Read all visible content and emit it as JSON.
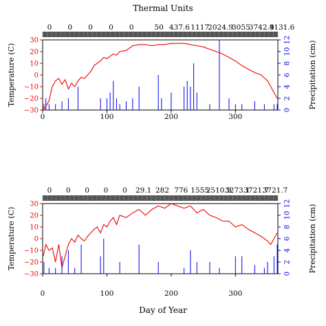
{
  "figure_title": "Thermal Units",
  "x_axis_label": "Day of Year",
  "colors": {
    "temperature": "#ee0000",
    "precipitation": "#0000ee",
    "band": "#555555"
  },
  "chart_data": [
    {
      "type": "line",
      "title": "",
      "xlabel": "",
      "ylabel": "Temperature (C)",
      "y2label": "Precipitation (cm)",
      "xlim": [
        0,
        366
      ],
      "ylim": [
        -30,
        30
      ],
      "y2lim": [
        0,
        12
      ],
      "x_ticks": [
        0,
        100,
        200,
        300
      ],
      "y_ticks": [
        -30,
        -20,
        -10,
        0,
        10,
        20,
        30
      ],
      "y2_ticks": [
        0,
        2,
        4,
        6,
        8,
        10,
        12
      ],
      "thermal_units": [
        "0",
        "0",
        "0",
        "0",
        "0",
        "50",
        "437.6",
        "1117",
        "2024.9",
        "3055",
        "3742.9",
        "4131.6"
      ],
      "series": [
        {
          "name": "Temperature",
          "kind": "line",
          "x": [
            1,
            5,
            10,
            15,
            20,
            25,
            30,
            35,
            40,
            45,
            50,
            55,
            60,
            65,
            70,
            75,
            80,
            85,
            90,
            95,
            100,
            105,
            110,
            115,
            120,
            130,
            140,
            150,
            160,
            170,
            180,
            190,
            200,
            210,
            220,
            230,
            240,
            250,
            260,
            270,
            280,
            290,
            300,
            310,
            320,
            330,
            340,
            350,
            355,
            360,
            365
          ],
          "y": [
            -30,
            -27,
            -22,
            -10,
            -5,
            -3,
            -8,
            -4,
            -12,
            -7,
            -10,
            -5,
            -2,
            -3,
            0,
            3,
            8,
            10,
            12,
            15,
            14,
            16,
            18,
            17,
            20,
            21,
            25,
            26,
            26,
            25,
            26,
            26,
            27,
            27,
            27,
            26,
            25,
            24,
            22,
            20,
            18,
            15,
            12,
            8,
            5,
            2,
            0,
            -5,
            -10,
            -15,
            -20
          ]
        },
        {
          "name": "Precipitation",
          "kind": "bar",
          "x": [
            2,
            5,
            10,
            20,
            30,
            40,
            55,
            90,
            100,
            105,
            110,
            115,
            120,
            130,
            140,
            150,
            180,
            185,
            200,
            220,
            225,
            230,
            235,
            240,
            260,
            275,
            290,
            300,
            310,
            330,
            345,
            360,
            365
          ],
          "y": [
            1,
            2,
            1,
            1,
            1.5,
            2,
            4,
            2,
            2,
            3,
            5,
            2,
            1,
            1.5,
            2,
            4,
            6,
            2,
            3,
            4,
            5,
            4,
            8,
            3,
            1,
            12,
            2,
            1,
            1,
            1.5,
            1,
            1,
            1
          ]
        }
      ]
    },
    {
      "type": "line",
      "title": "",
      "xlabel": "Day of Year",
      "ylabel": "Temperature (C)",
      "y2label": "Precipitation (cm)",
      "xlim": [
        0,
        366
      ],
      "ylim": [
        -30,
        30
      ],
      "y2lim": [
        0,
        12
      ],
      "x_ticks": [
        0,
        100,
        200,
        300
      ],
      "y_ticks": [
        -30,
        -20,
        -10,
        0,
        10,
        20,
        30
      ],
      "y2_ticks": [
        0,
        2,
        4,
        6,
        8,
        10,
        12
      ],
      "thermal_units": [
        "0",
        "0",
        "0",
        "0",
        "0",
        "29.1",
        "282",
        "776",
        "1555",
        "2510.9",
        "3273.1",
        "3721.7",
        "3721.7"
      ],
      "series": [
        {
          "name": "Temperature",
          "kind": "line",
          "x": [
            1,
            5,
            10,
            15,
            20,
            25,
            30,
            35,
            40,
            45,
            50,
            55,
            60,
            65,
            70,
            75,
            80,
            85,
            90,
            95,
            100,
            105,
            110,
            115,
            120,
            130,
            140,
            150,
            160,
            170,
            180,
            190,
            200,
            210,
            220,
            230,
            240,
            250,
            260,
            270,
            280,
            290,
            300,
            310,
            320,
            330,
            340,
            350,
            355,
            360,
            365
          ],
          "y": [
            -15,
            -5,
            -10,
            -8,
            -20,
            -5,
            -25,
            -15,
            -5,
            0,
            -3,
            3,
            0,
            -2,
            2,
            5,
            8,
            10,
            5,
            12,
            10,
            15,
            18,
            12,
            20,
            18,
            22,
            25,
            20,
            25,
            28,
            26,
            30,
            28,
            26,
            28,
            22,
            25,
            20,
            18,
            15,
            15,
            10,
            12,
            8,
            5,
            2,
            -2,
            -5,
            0,
            5
          ]
        },
        {
          "name": "Precipitation",
          "kind": "bar",
          "x": [
            2,
            10,
            20,
            30,
            40,
            50,
            60,
            90,
            95,
            120,
            150,
            180,
            220,
            230,
            240,
            260,
            275,
            300,
            310,
            330,
            345,
            350,
            360,
            365
          ],
          "y": [
            2,
            1,
            1,
            3,
            4,
            1,
            5,
            3,
            6,
            2,
            5,
            2,
            1,
            4,
            2,
            2,
            1,
            3,
            3,
            1.5,
            1,
            2,
            3,
            5
          ]
        }
      ]
    }
  ]
}
